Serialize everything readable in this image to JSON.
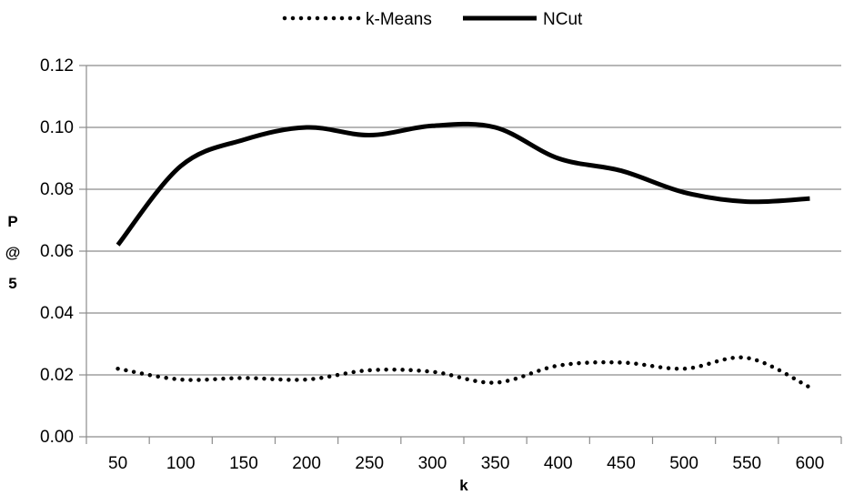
{
  "chart_data": {
    "type": "line",
    "title": "",
    "xlabel": "k",
    "ylabel_lines": [
      "P",
      "@",
      "5"
    ],
    "x": [
      50,
      100,
      150,
      200,
      250,
      300,
      350,
      400,
      450,
      500,
      550,
      600
    ],
    "x_tick_labels": [
      "50",
      "100",
      "150",
      "200",
      "250",
      "300",
      "350",
      "400",
      "450",
      "500",
      "550",
      "600"
    ],
    "y_tick_values": [
      0,
      0.02,
      0.04,
      0.06,
      0.08,
      0.1,
      0.12
    ],
    "y_tick_labels": [
      "0.00",
      "0.02",
      "0.04",
      "0.06",
      "0.08",
      "0.10",
      "0.12"
    ],
    "ylim": [
      0,
      0.12
    ],
    "grid": "horizontal",
    "legend_position": "top",
    "series": [
      {
        "name": "k-Means",
        "style": "dotted",
        "color": "#000000",
        "values": [
          0.022,
          0.0185,
          0.019,
          0.0185,
          0.0215,
          0.021,
          0.0175,
          0.023,
          0.024,
          0.022,
          0.0255,
          0.016
        ]
      },
      {
        "name": "NCut",
        "style": "solid",
        "color": "#000000",
        "values": [
          0.062,
          0.0875,
          0.096,
          0.1,
          0.0975,
          0.1005,
          0.1,
          0.09,
          0.086,
          0.079,
          0.076,
          0.077
        ]
      }
    ]
  }
}
